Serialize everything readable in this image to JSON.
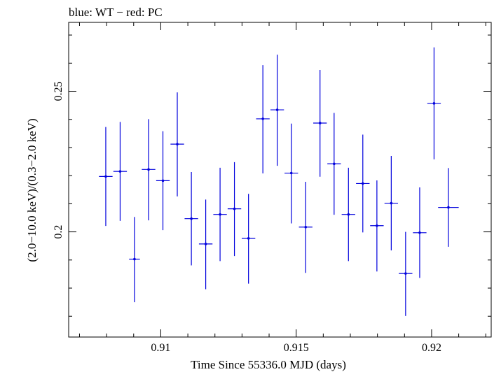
{
  "chart_data": {
    "type": "scatter",
    "title": "blue: WT − red: PC",
    "xlabel": "Time Since 55336.0 MJD (days)",
    "ylabel": "(2.0−10.0 keV)/(0.3−2.0 keV)",
    "xlim": [
      0.9066,
      0.9222
    ],
    "ylim": [
      0.1626,
      0.2745
    ],
    "x_ticks": [
      0.91,
      0.915,
      0.92
    ],
    "x_tick_labels": [
      "0.91",
      "0.915",
      "0.92"
    ],
    "y_ticks": [
      0.2,
      0.25
    ],
    "y_tick_labels": [
      "0.2",
      "0.25"
    ],
    "grid": false,
    "series": [
      {
        "color": "#0000dd",
        "points": [
          {
            "x": 0.90797,
            "y": 0.2197,
            "xerr": 0.00025,
            "yerr_lo": 0.0176,
            "yerr_hi": 0.0176
          },
          {
            "x": 0.9085,
            "y": 0.2215,
            "xerr": 0.00025,
            "yerr_lo": 0.0176,
            "yerr_hi": 0.0176
          },
          {
            "x": 0.90903,
            "y": 0.1903,
            "xerr": 0.0002,
            "yerr_lo": 0.0153,
            "yerr_hi": 0.015
          },
          {
            "x": 0.90955,
            "y": 0.2222,
            "xerr": 0.00025,
            "yerr_lo": 0.0181,
            "yerr_hi": 0.0179
          },
          {
            "x": 0.91008,
            "y": 0.2182,
            "xerr": 0.00025,
            "yerr_lo": 0.0176,
            "yerr_hi": 0.0176
          },
          {
            "x": 0.91061,
            "y": 0.2312,
            "xerr": 0.00025,
            "yerr_lo": 0.0186,
            "yerr_hi": 0.0184
          },
          {
            "x": 0.91113,
            "y": 0.2047,
            "xerr": 0.00025,
            "yerr_lo": 0.0166,
            "yerr_hi": 0.0166
          },
          {
            "x": 0.91166,
            "y": 0.1957,
            "xerr": 0.00025,
            "yerr_lo": 0.0161,
            "yerr_hi": 0.0158
          },
          {
            "x": 0.91219,
            "y": 0.2062,
            "xerr": 0.00025,
            "yerr_lo": 0.0166,
            "yerr_hi": 0.0166
          },
          {
            "x": 0.91272,
            "y": 0.2082,
            "xerr": 0.00025,
            "yerr_lo": 0.0168,
            "yerr_hi": 0.0166
          },
          {
            "x": 0.91324,
            "y": 0.1977,
            "xerr": 0.00025,
            "yerr_lo": 0.0161,
            "yerr_hi": 0.0158
          },
          {
            "x": 0.91377,
            "y": 0.2402,
            "xerr": 0.00025,
            "yerr_lo": 0.0194,
            "yerr_hi": 0.0191
          },
          {
            "x": 0.9143,
            "y": 0.2434,
            "xerr": 0.00025,
            "yerr_lo": 0.0199,
            "yerr_hi": 0.0196
          },
          {
            "x": 0.91482,
            "y": 0.2209,
            "xerr": 0.00025,
            "yerr_lo": 0.0179,
            "yerr_hi": 0.0176
          },
          {
            "x": 0.91535,
            "y": 0.2017,
            "xerr": 0.00025,
            "yerr_lo": 0.0163,
            "yerr_hi": 0.0161
          },
          {
            "x": 0.91588,
            "y": 0.2387,
            "xerr": 0.00025,
            "yerr_lo": 0.0191,
            "yerr_hi": 0.0189
          },
          {
            "x": 0.9164,
            "y": 0.2242,
            "xerr": 0.00025,
            "yerr_lo": 0.0181,
            "yerr_hi": 0.0181
          },
          {
            "x": 0.91693,
            "y": 0.2062,
            "xerr": 0.00025,
            "yerr_lo": 0.0166,
            "yerr_hi": 0.0166
          },
          {
            "x": 0.91746,
            "y": 0.2172,
            "xerr": 0.00025,
            "yerr_lo": 0.0174,
            "yerr_hi": 0.0174
          },
          {
            "x": 0.91798,
            "y": 0.2022,
            "xerr": 0.00025,
            "yerr_lo": 0.0163,
            "yerr_hi": 0.0161
          },
          {
            "x": 0.91851,
            "y": 0.2102,
            "xerr": 0.00025,
            "yerr_lo": 0.0168,
            "yerr_hi": 0.0168
          },
          {
            "x": 0.91904,
            "y": 0.1852,
            "xerr": 0.00025,
            "yerr_lo": 0.0151,
            "yerr_hi": 0.0148
          },
          {
            "x": 0.91956,
            "y": 0.1997,
            "xerr": 0.00025,
            "yerr_lo": 0.0161,
            "yerr_hi": 0.0161
          },
          {
            "x": 0.92009,
            "y": 0.2457,
            "xerr": 0.00025,
            "yerr_lo": 0.0199,
            "yerr_hi": 0.0199
          },
          {
            "x": 0.92062,
            "y": 0.2087,
            "xerr": 0.00038,
            "yerr_lo": 0.014,
            "yerr_hi": 0.014
          }
        ]
      }
    ]
  }
}
